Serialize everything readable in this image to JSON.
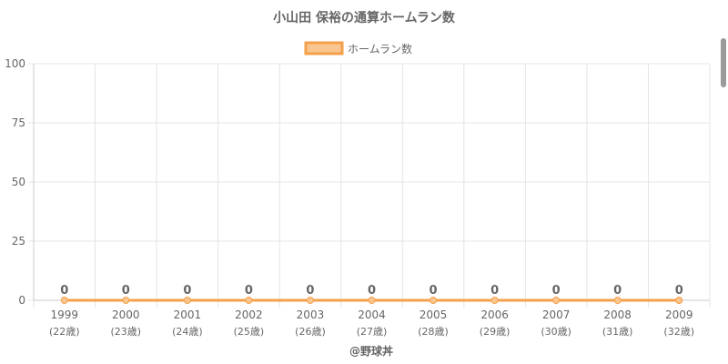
{
  "chart_data": {
    "type": "line",
    "title": "小山田 保裕の通算ホームラン数",
    "legend": {
      "position": "top",
      "label": "ホームラン数"
    },
    "categories": [
      "1999",
      "2000",
      "2001",
      "2002",
      "2003",
      "2004",
      "2005",
      "2006",
      "2007",
      "2008",
      "2009"
    ],
    "sub_labels": [
      "(22歳)",
      "(23歳)",
      "(24歳)",
      "(25歳)",
      "(26歳)",
      "(27歳)",
      "(28歳)",
      "(29歳)",
      "(30歳)",
      "(31歳)",
      "(32歳)"
    ],
    "series": [
      {
        "name": "ホームラン数",
        "values": [
          0,
          0,
          0,
          0,
          0,
          0,
          0,
          0,
          0,
          0,
          0
        ],
        "color": "#f5a04a",
        "fill": "#f9c690"
      }
    ],
    "ylim": [
      0,
      100
    ],
    "yticks": [
      0,
      25,
      50,
      75,
      100
    ],
    "grid": true,
    "xlabel": "",
    "ylabel": ""
  },
  "credit": "@野球丼"
}
